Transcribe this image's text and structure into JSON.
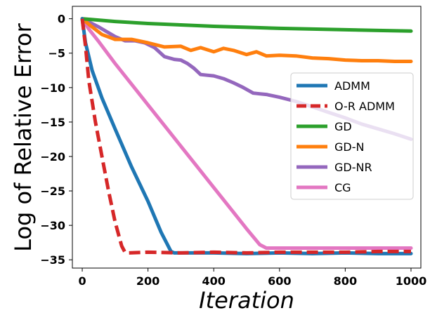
{
  "chart_data": {
    "type": "line",
    "title": "",
    "xlabel": "Iteration",
    "ylabel": "Log of Relative Error",
    "xlim": [
      -30,
      1030
    ],
    "ylim": [
      -36.2,
      1.8
    ],
    "xticks": [
      0,
      200,
      400,
      600,
      800,
      1000
    ],
    "yticks": [
      0,
      -5,
      -10,
      -15,
      -20,
      -25,
      -30,
      -35
    ],
    "xtick_labels": [
      "0",
      "200",
      "400",
      "600",
      "800",
      "1000"
    ],
    "ytick_labels": [
      "0",
      "−5",
      "−10",
      "−15",
      "−20",
      "−25",
      "−30",
      "−35"
    ],
    "grid": false,
    "legend_position": "center-right",
    "series": [
      {
        "name": "ADMM",
        "color": "#1f77b4",
        "dash": "solid",
        "x": [
          0,
          10,
          30,
          60,
          100,
          150,
          200,
          240,
          270,
          280,
          300,
          400,
          500,
          600,
          700,
          800,
          900,
          1000
        ],
        "y": [
          0,
          -3.5,
          -7.5,
          -11.5,
          -16,
          -21.5,
          -26.5,
          -31,
          -33.8,
          -34.0,
          -34.0,
          -34.0,
          -34.1,
          -34.0,
          -34.1,
          -34.0,
          -34.1,
          -34.1
        ]
      },
      {
        "name": "O-R ADMM",
        "color": "#d62728",
        "dash": "dashed",
        "x": [
          0,
          10,
          20,
          40,
          60,
          80,
          100,
          120,
          130,
          140,
          200,
          300,
          400,
          500,
          600,
          700,
          800,
          900,
          1000
        ],
        "y": [
          0,
          -4,
          -9,
          -15,
          -20,
          -25,
          -29.5,
          -33,
          -33.9,
          -34.0,
          -33.9,
          -34.0,
          -33.9,
          -34.0,
          -33.9,
          -33.9,
          -33.9,
          -33.8,
          -33.8
        ]
      },
      {
        "name": "GD",
        "color": "#2ca02c",
        "dash": "solid",
        "x": [
          0,
          100,
          200,
          300,
          400,
          500,
          600,
          700,
          800,
          900,
          1000
        ],
        "y": [
          0,
          -0.4,
          -0.7,
          -0.9,
          -1.1,
          -1.25,
          -1.4,
          -1.5,
          -1.6,
          -1.7,
          -1.8
        ]
      },
      {
        "name": "GD-N",
        "color": "#ff7f0e",
        "dash": "solid",
        "x": [
          0,
          30,
          60,
          100,
          150,
          200,
          250,
          300,
          330,
          360,
          400,
          430,
          460,
          500,
          530,
          560,
          600,
          650,
          700,
          750,
          800,
          850,
          900,
          950,
          1000
        ],
        "y": [
          0,
          -1.2,
          -2.3,
          -3.0,
          -3.0,
          -3.5,
          -4.1,
          -4.0,
          -4.6,
          -4.2,
          -4.8,
          -4.3,
          -4.6,
          -5.2,
          -4.8,
          -5.4,
          -5.3,
          -5.4,
          -5.7,
          -5.8,
          -6.0,
          -6.1,
          -6.1,
          -6.2,
          -6.2
        ]
      },
      {
        "name": "GD-NR",
        "color": "#9467bd",
        "dash": "solid",
        "x": [
          0,
          50,
          100,
          130,
          160,
          190,
          220,
          250,
          280,
          300,
          320,
          340,
          360,
          380,
          400,
          430,
          460,
          490,
          520,
          540,
          560,
          580,
          600,
          650,
          700,
          750,
          800,
          850,
          900,
          950,
          1000
        ],
        "y": [
          0,
          -1.2,
          -2.6,
          -3.2,
          -3.2,
          -3.5,
          -4.2,
          -5.5,
          -5.9,
          -6.0,
          -6.5,
          -7.2,
          -8.1,
          -8.2,
          -8.3,
          -8.7,
          -9.3,
          -10.0,
          -10.8,
          -10.9,
          -11.0,
          -11.2,
          -11.4,
          -12.0,
          -12.8,
          -13.6,
          -14.4,
          -15.3,
          -16.0,
          -16.7,
          -17.5
        ]
      },
      {
        "name": "CG",
        "color": "#e377c2",
        "dash": "solid",
        "x": [
          0,
          20,
          50,
          100,
          150,
          200,
          250,
          300,
          350,
          400,
          450,
          500,
          540,
          560,
          570,
          600,
          700,
          800,
          900,
          1000
        ],
        "y": [
          0,
          -1.5,
          -3.3,
          -6.5,
          -9.5,
          -12.5,
          -15.5,
          -18.5,
          -21.5,
          -24.5,
          -27.5,
          -30.5,
          -32.8,
          -33.3,
          -33.3,
          -33.3,
          -33.3,
          -33.3,
          -33.3,
          -33.3
        ]
      }
    ]
  }
}
